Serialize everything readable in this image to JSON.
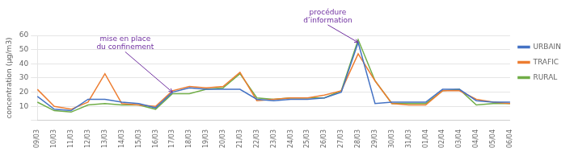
{
  "chart_data": {
    "type": "line",
    "categories": [
      "09/03",
      "10/03",
      "11/03",
      "12/03",
      "13/03",
      "14/03",
      "15/03",
      "16/03",
      "17/03",
      "18/03",
      "19/03",
      "20/03",
      "21/03",
      "22/03",
      "23/03",
      "24/03",
      "25/03",
      "26/03",
      "27/03",
      "28/03",
      "29/03",
      "30/03",
      "31/03",
      "01/04",
      "02/04",
      "03/04",
      "04/04",
      "05/04",
      "06/04"
    ],
    "series": [
      {
        "name": "URBAIN",
        "color": "#4472C4",
        "values": [
          17,
          8,
          7,
          15,
          15,
          13,
          12,
          9,
          20,
          23,
          22,
          22,
          22,
          15,
          14,
          15,
          15,
          16,
          20,
          55,
          12,
          13,
          13,
          13,
          22,
          22,
          14,
          13,
          13
        ]
      },
      {
        "name": "TRAFIC",
        "color": "#ED7D31",
        "values": [
          22,
          10,
          8,
          13,
          33,
          12,
          11,
          10,
          21,
          24,
          23,
          24,
          34,
          14,
          15,
          16,
          16,
          18,
          21,
          47,
          28,
          12,
          11,
          11,
          21,
          21,
          15,
          13,
          12
        ]
      },
      {
        "name": "RURAL",
        "color": "#70AD47",
        "values": [
          13,
          7,
          6,
          11,
          12,
          11,
          11,
          8,
          19,
          19,
          22,
          23,
          33,
          16,
          15,
          16,
          16,
          16,
          21,
          57,
          28,
          12,
          12,
          12,
          21,
          22,
          11,
          12,
          12
        ]
      }
    ],
    "y_label": "concentration (µg/m3)",
    "ylim": [
      0,
      60
    ],
    "yticks": [
      {
        "value": 0,
        "label": ""
      },
      10,
      20,
      30,
      40,
      50,
      60
    ],
    "grid": true,
    "legend": "right",
    "annotations": [
      {
        "text": "mise en place\ndu confinement",
        "x": "17/03",
        "y": 20,
        "color": "#7030A0"
      },
      {
        "text": "procédure\nd’information",
        "x": "28/03",
        "y": 55,
        "color": "#7030A0"
      }
    ]
  }
}
